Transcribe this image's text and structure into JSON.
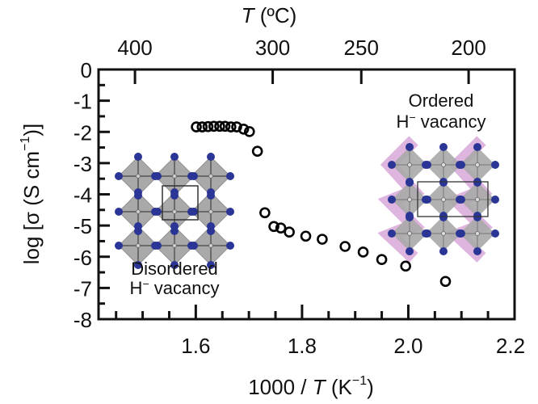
{
  "chart_data": {
    "type": "scatter",
    "title": "",
    "xlabel": "1000 / T (K⁻¹)",
    "xlabel_parts": {
      "prefix": "1000 / ",
      "italic": "T",
      "unit": " (K",
      "sup": "−1",
      "close": ")"
    },
    "ylabel": "log [σ (S cm⁻¹)]",
    "ylabel_parts": {
      "main": "log [σ (S cm",
      "sup": "−1",
      "close": ")]"
    },
    "top_xlabel": "T (ºC)",
    "top_xlabel_parts": {
      "italic": "T",
      "unit": " (ºC)"
    },
    "xlim": [
      1.417,
      2.2
    ],
    "ylim": [
      -8,
      0
    ],
    "grid": false,
    "x_ticks": [
      1.6,
      1.8,
      2.0,
      2.2
    ],
    "x_tick_labels": [
      "1.6",
      "1.8",
      "2.0",
      "2.2"
    ],
    "x_minor_step": 0.05,
    "y_ticks": [
      0,
      -1,
      -2,
      -3,
      -4,
      -5,
      -6,
      -7,
      -8
    ],
    "y_tick_labels": [
      "0",
      "-1",
      "-2",
      "-3",
      "-4",
      "-5",
      "-6",
      "-7",
      "-8"
    ],
    "y_minor_step": 0.5,
    "top_ticks_celsius": [
      400,
      300,
      250,
      200
    ],
    "top_tick_labels": [
      "400",
      "300",
      "250",
      "200"
    ],
    "series": [
      {
        "name": "conductivity",
        "marker": "open-circle",
        "color": "#000000",
        "x": [
          1.601,
          1.612,
          1.623,
          1.634,
          1.645,
          1.655,
          1.666,
          1.677,
          1.69,
          1.701,
          1.716,
          1.73,
          1.747,
          1.76,
          1.776,
          1.807,
          1.838,
          1.881,
          1.915,
          1.95,
          1.995,
          2.07
        ],
        "y": [
          -1.84,
          -1.84,
          -1.83,
          -1.82,
          -1.82,
          -1.82,
          -1.84,
          -1.84,
          -1.91,
          -1.99,
          -2.62,
          -4.59,
          -5.03,
          -5.08,
          -5.21,
          -5.34,
          -5.44,
          -5.67,
          -5.85,
          -6.09,
          -6.3,
          -6.79
        ]
      }
    ],
    "annotations": [
      {
        "name": "disordered",
        "line1": "Disordered",
        "line2_main": "H",
        "line2_sup": "−",
        "line2_rest": " vacancy"
      },
      {
        "name": "ordered",
        "line1": "Ordered",
        "line2_main": "H",
        "line2_sup": "−",
        "line2_rest": " vacancy"
      }
    ]
  },
  "colors": {
    "axis": "#111111",
    "octahedron": "#a9a9a9",
    "anion": "#2a3595",
    "highlight": "#d8a8d8"
  }
}
